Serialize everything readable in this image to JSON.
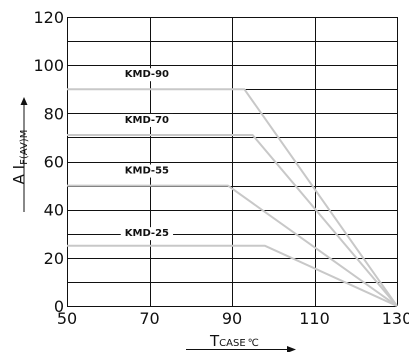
{
  "chart_data": {
    "type": "line",
    "xlabel": {
      "main": "T",
      "sub": "CASE",
      "unit": "℃"
    },
    "ylabel": {
      "main": "A I",
      "sub": "F(AV)M"
    },
    "xlim": [
      50,
      130
    ],
    "ylim": [
      0,
      120
    ],
    "x_ticks": [
      50,
      70,
      90,
      110,
      130
    ],
    "y_ticks": [
      0,
      20,
      40,
      60,
      80,
      100,
      120
    ],
    "grid": true,
    "series": [
      {
        "name": "KMD-90",
        "color": "#c8c8c8",
        "points": [
          [
            50,
            90
          ],
          [
            93,
            90
          ],
          [
            130,
            0
          ]
        ],
        "label_at": [
          64,
          95
        ]
      },
      {
        "name": "KMD-70",
        "color": "#c8c8c8",
        "points": [
          [
            50,
            71
          ],
          [
            95,
            71
          ],
          [
            130,
            0
          ]
        ],
        "label_at": [
          64,
          76
        ]
      },
      {
        "name": "KMD-55",
        "color": "#c8c8c8",
        "points": [
          [
            50,
            50
          ],
          [
            89,
            50
          ],
          [
            130,
            0
          ]
        ],
        "label_at": [
          64,
          55
        ]
      },
      {
        "name": "KMD-25",
        "color": "#c8c8c8",
        "points": [
          [
            50,
            25
          ],
          [
            98,
            25
          ],
          [
            130,
            0
          ]
        ],
        "label_at": [
          64,
          29
        ]
      }
    ]
  }
}
